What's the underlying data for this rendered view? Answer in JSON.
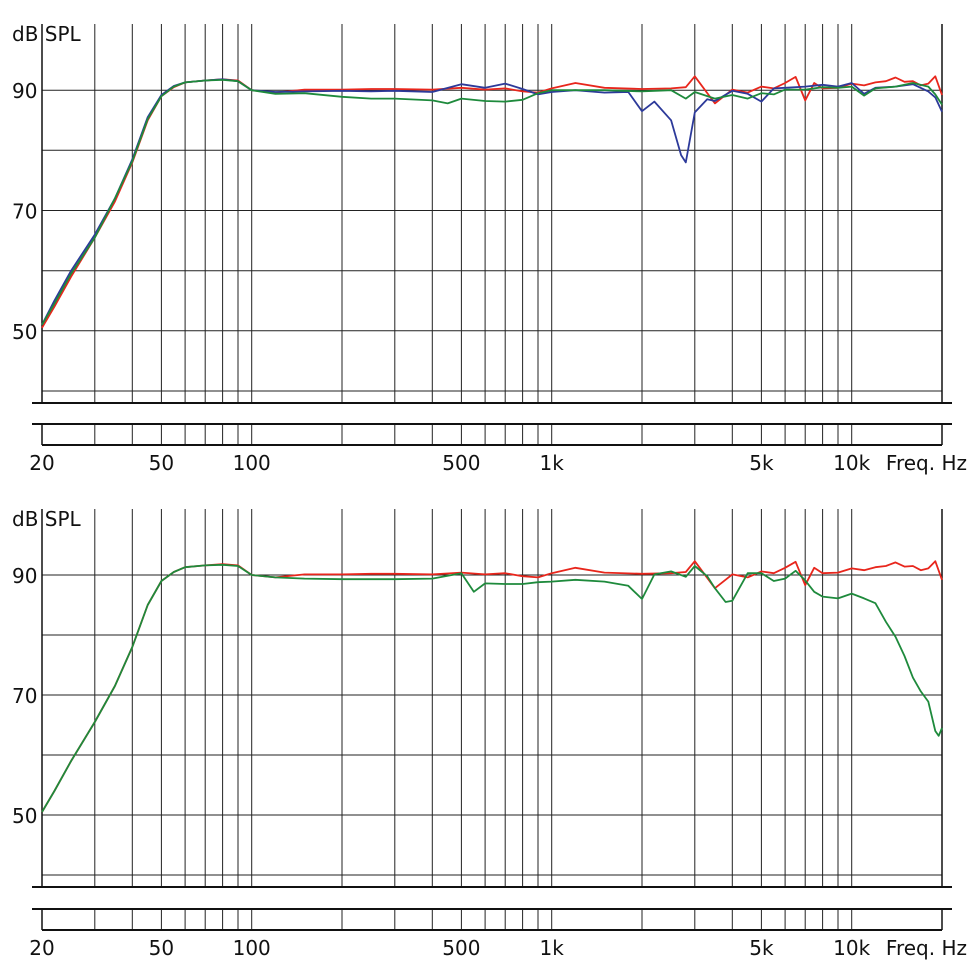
{
  "chart_data": [
    {
      "type": "line",
      "title": "",
      "ylabel": "dB SPL",
      "xlabel": "Freq. Hz",
      "x_scale": "log",
      "xlim": [
        20,
        20000
      ],
      "ylim": [
        38,
        101
      ],
      "y_tick_labels": [
        "50",
        "70",
        "90"
      ],
      "x_tick_labels": [
        "20",
        "50",
        "100",
        "500",
        "1k",
        "5k",
        "10k"
      ],
      "grid": true,
      "series": [
        {
          "color": "#e8261c",
          "x": [
            20,
            22,
            25,
            30,
            35,
            40,
            45,
            50,
            55,
            60,
            70,
            80,
            90,
            100,
            120,
            150,
            200,
            250,
            300,
            400,
            500,
            600,
            700,
            800,
            900,
            1000,
            1200,
            1500,
            2000,
            2500,
            2800,
            3000,
            3500,
            4000,
            4500,
            5000,
            5500,
            6000,
            6500,
            7000,
            7500,
            8000,
            9000,
            10000,
            11000,
            12000,
            13000,
            14000,
            15000,
            16000,
            17000,
            18000,
            19000,
            20000
          ],
          "y": [
            50.5,
            54,
            59,
            65.5,
            71.5,
            78,
            85,
            89,
            90.5,
            91.3,
            91.6,
            91.8,
            91.6,
            90,
            89.6,
            90.1,
            90.1,
            90.2,
            90.2,
            90.1,
            90.4,
            90.1,
            90.3,
            89.8,
            89.6,
            90.3,
            91.2,
            90.4,
            90.2,
            90.3,
            90.5,
            92.3,
            87.8,
            90.1,
            89.6,
            90.6,
            90.3,
            91.2,
            92.2,
            88.3,
            91.2,
            90.3,
            90.4,
            91.1,
            90.8,
            91.3,
            91.5,
            92.1,
            91.4,
            91.5,
            90.8,
            91.1,
            92.3,
            89.2
          ]
        },
        {
          "color": "#2d3a9a",
          "x": [
            20,
            22,
            25,
            30,
            35,
            40,
            45,
            50,
            55,
            60,
            70,
            80,
            90,
            100,
            120,
            150,
            200,
            250,
            300,
            400,
            500,
            600,
            700,
            800,
            900,
            1000,
            1200,
            1500,
            1800,
            2000,
            2200,
            2500,
            2700,
            2800,
            3000,
            3300,
            3500,
            4000,
            4500,
            5000,
            5500,
            6000,
            7000,
            8000,
            9000,
            10000,
            11000,
            12000,
            14000,
            16000,
            18000,
            19000,
            20000
          ],
          "y": [
            51,
            55,
            60,
            66,
            72,
            78.5,
            85.5,
            89.2,
            90.7,
            91.3,
            91.6,
            91.8,
            91.5,
            90,
            89.7,
            89.8,
            89.9,
            89.8,
            89.9,
            89.7,
            91,
            90.4,
            91.1,
            90.2,
            89.3,
            89.7,
            90,
            89.6,
            89.7,
            86.5,
            88.1,
            85,
            79.2,
            78,
            86.3,
            88.5,
            88.2,
            89.9,
            89.4,
            88.1,
            90.3,
            90.4,
            90.6,
            90.9,
            90.6,
            91.2,
            89.4,
            90.4,
            90.6,
            91,
            89.8,
            88.8,
            86.4
          ]
        },
        {
          "color": "#1e8a3c",
          "x": [
            20,
            22,
            25,
            30,
            35,
            40,
            45,
            50,
            55,
            60,
            70,
            80,
            90,
            100,
            120,
            150,
            200,
            250,
            300,
            400,
            450,
            500,
            600,
            700,
            800,
            900,
            1000,
            1200,
            1500,
            2000,
            2500,
            2800,
            3000,
            3500,
            4000,
            4500,
            5000,
            5500,
            6000,
            7000,
            8000,
            9000,
            10000,
            11000,
            12000,
            14000,
            16000,
            18000,
            19000,
            20000
          ],
          "y": [
            51,
            54.5,
            59.5,
            65.5,
            72,
            78.2,
            85.2,
            89,
            90.6,
            91.3,
            91.6,
            91.7,
            91.5,
            90,
            89.4,
            89.5,
            88.9,
            88.6,
            88.6,
            88.3,
            87.8,
            88.6,
            88.2,
            88.1,
            88.4,
            89.5,
            90,
            90,
            90,
            89.8,
            90,
            88.6,
            89.7,
            88.6,
            89.2,
            88.6,
            89.5,
            89.3,
            90.1,
            90.1,
            90.5,
            90.4,
            90.6,
            89.1,
            90.3,
            90.6,
            91.2,
            90.6,
            89.3,
            87.6
          ]
        }
      ]
    },
    {
      "type": "line",
      "title": "",
      "ylabel": "dB SPL",
      "xlabel": "Freq. Hz",
      "x_scale": "log",
      "xlim": [
        20,
        20000
      ],
      "ylim": [
        38,
        101
      ],
      "y_tick_labels": [
        "50",
        "70",
        "90"
      ],
      "x_tick_labels": [
        "20",
        "50",
        "100",
        "500",
        "1k",
        "5k",
        "10k"
      ],
      "grid": true,
      "series": [
        {
          "color": "#e8261c",
          "x": [
            20,
            22,
            25,
            30,
            35,
            40,
            45,
            50,
            55,
            60,
            70,
            80,
            90,
            100,
            120,
            150,
            200,
            250,
            300,
            400,
            500,
            600,
            700,
            800,
            900,
            1000,
            1200,
            1500,
            2000,
            2500,
            2800,
            3000,
            3500,
            4000,
            4500,
            5000,
            5500,
            6000,
            6500,
            7000,
            7500,
            8000,
            9000,
            10000,
            11000,
            12000,
            13000,
            14000,
            15000,
            16000,
            17000,
            18000,
            19000,
            20000
          ],
          "y": [
            50.5,
            54,
            59,
            65.5,
            71.5,
            78,
            85,
            89,
            90.5,
            91.3,
            91.6,
            91.8,
            91.6,
            90,
            89.6,
            90.1,
            90.1,
            90.2,
            90.2,
            90.1,
            90.4,
            90.1,
            90.3,
            89.8,
            89.6,
            90.3,
            91.2,
            90.4,
            90.2,
            90.3,
            90.5,
            92.3,
            87.8,
            90.1,
            89.6,
            90.6,
            90.3,
            91.2,
            92.2,
            88.3,
            91.2,
            90.3,
            90.4,
            91.1,
            90.8,
            91.3,
            91.5,
            92.1,
            91.4,
            91.5,
            90.8,
            91.1,
            92.3,
            89.2
          ]
        },
        {
          "color": "#1e8a3c",
          "x": [
            20,
            22,
            25,
            30,
            35,
            40,
            45,
            50,
            55,
            60,
            70,
            80,
            90,
            100,
            120,
            150,
            200,
            250,
            300,
            400,
            500,
            550,
            600,
            700,
            800,
            900,
            1000,
            1200,
            1500,
            1800,
            2000,
            2200,
            2500,
            2800,
            3000,
            3300,
            3500,
            3800,
            4000,
            4500,
            5000,
            5500,
            6000,
            6500,
            7000,
            7500,
            8000,
            9000,
            10000,
            11000,
            12000,
            13000,
            14000,
            15000,
            16000,
            17000,
            18000,
            19000,
            19500,
            20000
          ],
          "y": [
            50.5,
            54,
            59,
            65.5,
            71.5,
            78,
            85,
            89,
            90.5,
            91.3,
            91.6,
            91.7,
            91.5,
            90,
            89.6,
            89.4,
            89.3,
            89.3,
            89.3,
            89.4,
            90.3,
            87.2,
            88.6,
            88.5,
            88.5,
            88.8,
            88.9,
            89.2,
            88.9,
            88.2,
            86,
            90.1,
            90.6,
            89.7,
            91.5,
            89.8,
            87.8,
            85.5,
            85.7,
            90.3,
            90.3,
            89,
            89.4,
            90.7,
            89.1,
            87.2,
            86.4,
            86.1,
            86.9,
            86.1,
            85.3,
            82.2,
            79.7,
            76.5,
            72.9,
            70.6,
            68.9,
            64,
            63.2,
            64.5
          ]
        }
      ]
    }
  ]
}
